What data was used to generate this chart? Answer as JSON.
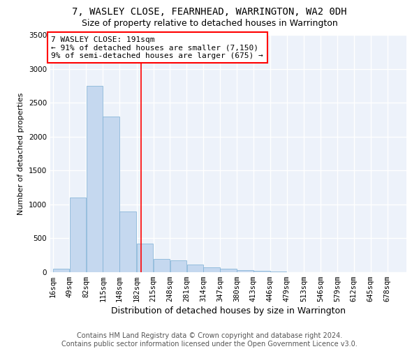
{
  "title": "7, WASLEY CLOSE, FEARNHEAD, WARRINGTON, WA2 0DH",
  "subtitle": "Size of property relative to detached houses in Warrington",
  "xlabel": "Distribution of detached houses by size in Warrington",
  "ylabel": "Number of detached properties",
  "footer_line1": "Contains HM Land Registry data © Crown copyright and database right 2024.",
  "footer_line2": "Contains public sector information licensed under the Open Government Licence v3.0.",
  "annotation_line1": "7 WASLEY CLOSE: 191sqm",
  "annotation_line2": "← 91% of detached houses are smaller (7,150)",
  "annotation_line3": "9% of semi-detached houses are larger (675) →",
  "bar_color": "#c5d8ef",
  "bar_edge_color": "#7aaed4",
  "red_line_x": 191,
  "categories": [
    "16sqm",
    "49sqm",
    "82sqm",
    "115sqm",
    "148sqm",
    "182sqm",
    "215sqm",
    "248sqm",
    "281sqm",
    "314sqm",
    "347sqm",
    "380sqm",
    "413sqm",
    "446sqm",
    "479sqm",
    "513sqm",
    "546sqm",
    "579sqm",
    "612sqm",
    "645sqm",
    "678sqm"
  ],
  "bin_edges": [
    16,
    49,
    82,
    115,
    148,
    182,
    215,
    248,
    281,
    314,
    347,
    380,
    413,
    446,
    479,
    513,
    546,
    579,
    612,
    645,
    678,
    711
  ],
  "values": [
    50,
    1100,
    2750,
    2300,
    900,
    425,
    200,
    175,
    110,
    75,
    50,
    30,
    20,
    10,
    5,
    3,
    2,
    1,
    1,
    1,
    1
  ],
  "ylim": [
    0,
    3500
  ],
  "yticks": [
    0,
    500,
    1000,
    1500,
    2000,
    2500,
    3000,
    3500
  ],
  "background_color": "#edf2fa",
  "grid_color": "#ffffff",
  "title_fontsize": 10,
  "subtitle_fontsize": 9,
  "xlabel_fontsize": 9,
  "ylabel_fontsize": 8,
  "tick_fontsize": 7.5,
  "annotation_fontsize": 8,
  "footer_fontsize": 7
}
